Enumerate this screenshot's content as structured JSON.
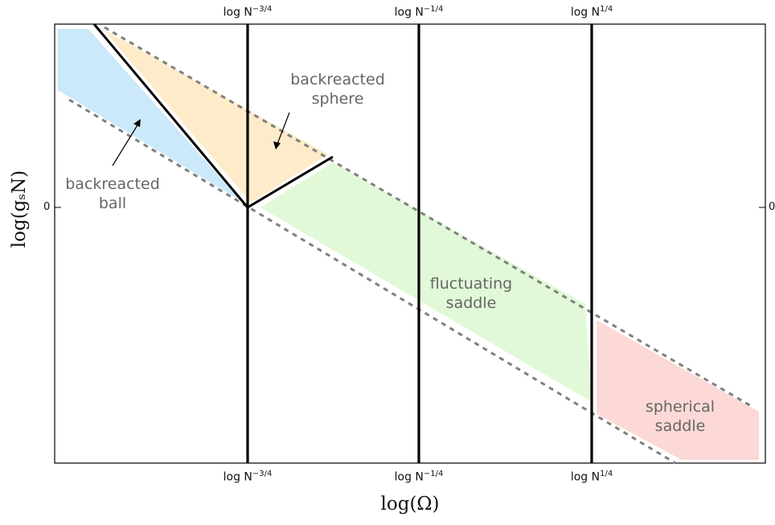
{
  "axes": {
    "x_label": "log(Ω)",
    "y_label": "log(gₛN)",
    "y_zero_left": "0",
    "y_zero_right": "0"
  },
  "vertical_lines": [
    {
      "base": "log N",
      "exp": "−3/4"
    },
    {
      "base": "log N",
      "exp": "−1/4"
    },
    {
      "base": "log N",
      "exp": "1/4"
    }
  ],
  "regions": {
    "backreacted_ball": {
      "line1": "backreacted",
      "line2": "ball",
      "color": "#cce8fb"
    },
    "backreacted_sphere": {
      "line1": "backreacted",
      "line2": "sphere",
      "color": "#fdebc9"
    },
    "fluctuating_saddle": {
      "line1": "fluctuating",
      "line2": "saddle",
      "color": "#e1f9d8"
    },
    "spherical_saddle": {
      "line1": "spherical",
      "line2": "saddle",
      "color": "#fcd9d6"
    }
  },
  "colors": {
    "boundary": "#000000",
    "dashed": "#808080"
  }
}
